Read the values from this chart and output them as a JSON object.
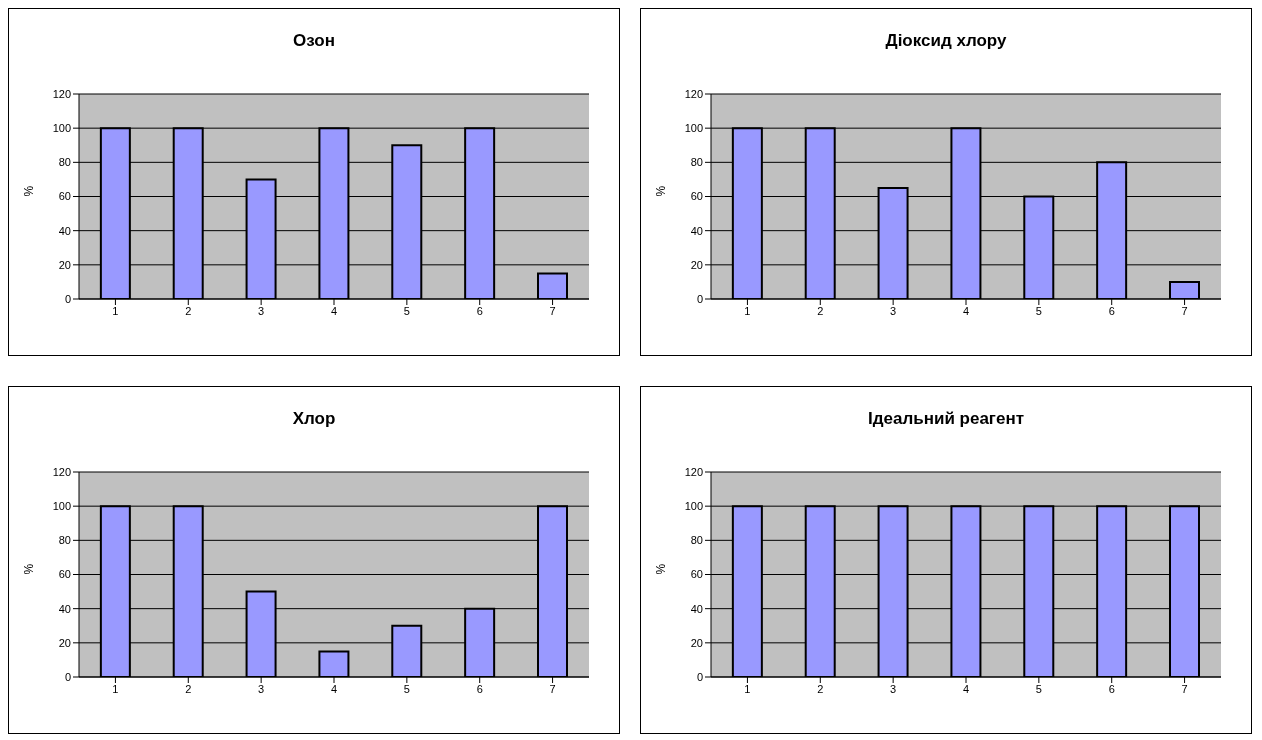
{
  "chart_data": [
    {
      "type": "bar",
      "title": "Озон",
      "ylabel": "%",
      "categories": [
        "1",
        "2",
        "3",
        "4",
        "5",
        "6",
        "7"
      ],
      "values": [
        100,
        100,
        70,
        100,
        90,
        100,
        15
      ],
      "color": "#9999ff",
      "ylim": [
        0,
        120
      ],
      "yticks": [
        0,
        20,
        40,
        60,
        80,
        100,
        120
      ],
      "grid": "y",
      "legend": false
    },
    {
      "type": "bar",
      "title": "Діоксид хлору",
      "ylabel": "%",
      "categories": [
        "1",
        "2",
        "3",
        "4",
        "5",
        "6",
        "7"
      ],
      "values": [
        100,
        100,
        65,
        100,
        60,
        80,
        10
      ],
      "color": "#9999ff",
      "ylim": [
        0,
        120
      ],
      "yticks": [
        0,
        20,
        40,
        60,
        80,
        100,
        120
      ],
      "grid": "y",
      "legend": false
    },
    {
      "type": "bar",
      "title": "Хлор",
      "ylabel": "%",
      "categories": [
        "1",
        "2",
        "3",
        "4",
        "5",
        "6",
        "7"
      ],
      "values": [
        100,
        100,
        50,
        15,
        30,
        40,
        100
      ],
      "color": "#9999ff",
      "ylim": [
        0,
        120
      ],
      "yticks": [
        0,
        20,
        40,
        60,
        80,
        100,
        120
      ],
      "grid": "y",
      "legend": false
    },
    {
      "type": "bar",
      "title": "Ідеальний реагент",
      "ylabel": "%",
      "categories": [
        "1",
        "2",
        "3",
        "4",
        "5",
        "6",
        "7"
      ],
      "values": [
        100,
        100,
        100,
        100,
        100,
        100,
        100
      ],
      "color": "#9999ff",
      "ylim": [
        0,
        120
      ],
      "yticks": [
        0,
        20,
        40,
        60,
        80,
        100,
        120
      ],
      "grid": "y",
      "legend": false
    }
  ]
}
